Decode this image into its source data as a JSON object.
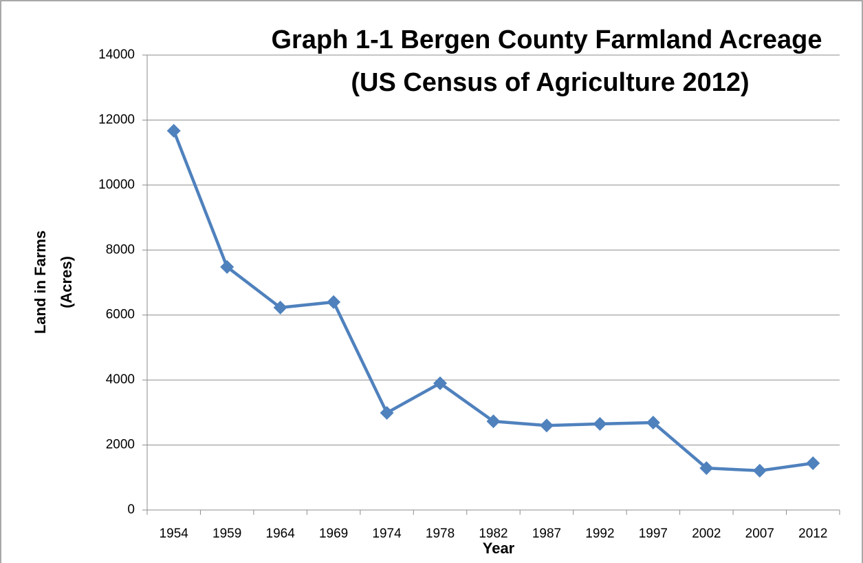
{
  "chart_data": {
    "type": "line",
    "title": "Graph 1-1 Bergen County Farmland Acreage",
    "subtitle": "(US Census of Agriculture 2012)",
    "xlabel": "Year",
    "ylabel": [
      "Land in Farms",
      "(Acres)"
    ],
    "categories": [
      "1954",
      "1959",
      "1964",
      "1969",
      "1974",
      "1978",
      "1982",
      "1987",
      "1992",
      "1997",
      "2002",
      "2007",
      "2012"
    ],
    "series": [
      {
        "name": "Land in Farms",
        "color": "#4f81bd",
        "values": [
          11670,
          7480,
          6230,
          6400,
          2990,
          3900,
          2730,
          2600,
          2650,
          2690,
          1290,
          1210,
          1440
        ]
      }
    ],
    "ylim": [
      0,
      14000
    ],
    "yticks": [
      0,
      2000,
      4000,
      6000,
      8000,
      10000,
      12000,
      14000
    ],
    "grid": true
  }
}
